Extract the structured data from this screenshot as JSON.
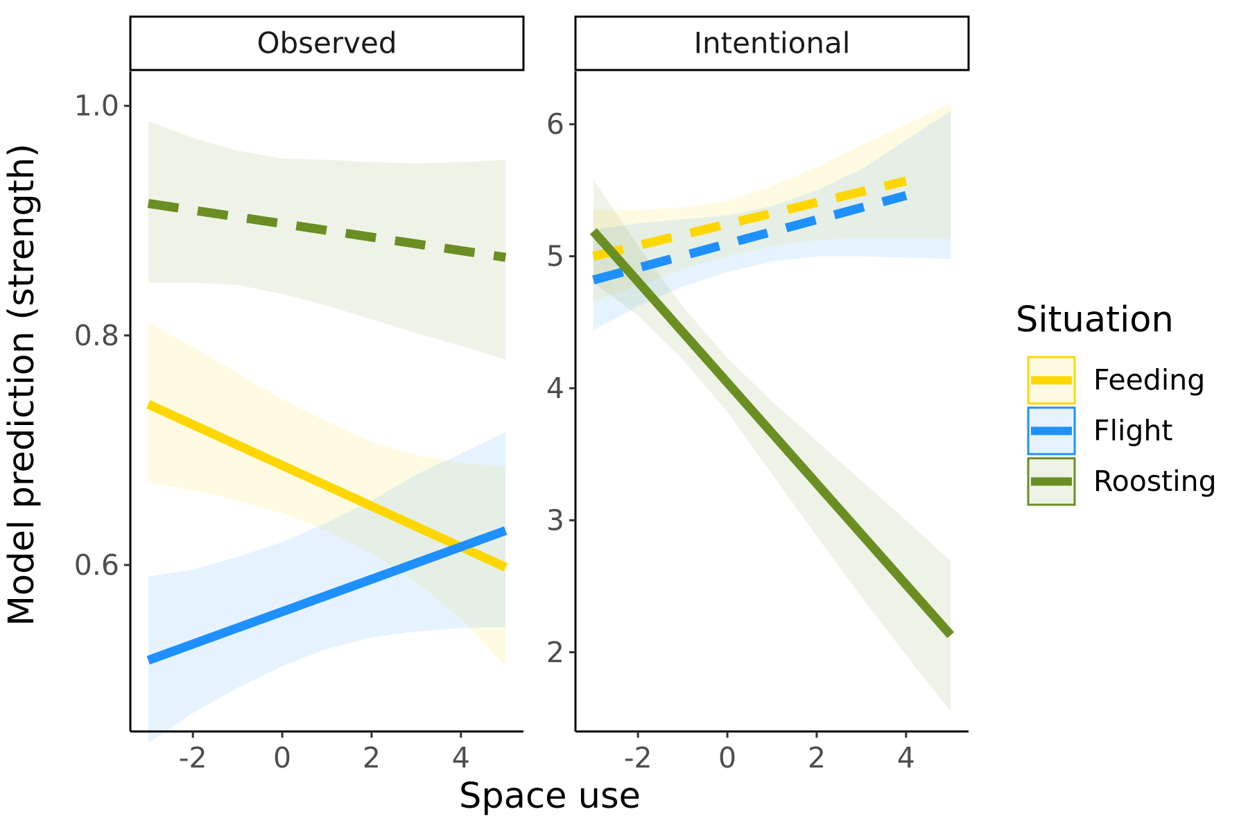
{
  "chart_data": {
    "type": "line",
    "xlabel": "Space use",
    "ylabel": "Model prediction (strength)",
    "legend": {
      "title": "Situation",
      "position": "right",
      "items": [
        {
          "label": "Feeding",
          "color": "#FFD700"
        },
        {
          "label": "Flight",
          "color": "#1E90FF"
        },
        {
          "label": "Roosting",
          "color": "#6B8E23"
        }
      ]
    },
    "grid": false,
    "panels": [
      {
        "label": "Observed",
        "xlim": [
          -3.4,
          5.4
        ],
        "ylim": [
          0.455,
          1.03
        ],
        "xticks": [
          -2,
          0,
          2,
          4
        ],
        "xtick_labels": [
          "-2",
          "0",
          "2",
          "4"
        ],
        "yticks": [
          0.6,
          0.8,
          1.0
        ],
        "ytick_labels": [
          "0.6",
          "0.8",
          "1.0"
        ],
        "series": [
          {
            "name": "Feeding",
            "color": "#FFD700",
            "dashed": false,
            "x": [
              -3,
              5
            ],
            "y": [
              0.74,
              0.598
            ],
            "ribbon": {
              "x": [
                -3,
                -2,
                -1,
                0,
                1,
                2,
                3,
                4,
                5
              ],
              "lower": [
                0.672,
                0.665,
                0.656,
                0.645,
                0.63,
                0.61,
                0.585,
                0.553,
                0.512
              ],
              "upper": [
                0.812,
                0.79,
                0.767,
                0.744,
                0.725,
                0.707,
                0.696,
                0.689,
                0.686
              ]
            }
          },
          {
            "name": "Flight",
            "color": "#1E90FF",
            "dashed": false,
            "x": [
              -3,
              5
            ],
            "y": [
              0.517,
              0.63
            ],
            "ribbon": {
              "x": [
                -3,
                -2,
                -1,
                0,
                1,
                2,
                3,
                4,
                5
              ],
              "lower": [
                0.445,
                0.471,
                0.493,
                0.512,
                0.527,
                0.537,
                0.542,
                0.545,
                0.546
              ],
              "upper": [
                0.59,
                0.596,
                0.607,
                0.62,
                0.637,
                0.656,
                0.679,
                0.697,
                0.716
              ]
            }
          },
          {
            "name": "Roosting",
            "color": "#6B8E23",
            "dashed": true,
            "x": [
              -3,
              5
            ],
            "y": [
              0.915,
              0.868
            ],
            "ribbon": {
              "x": [
                -3,
                -2,
                -1,
                0,
                1,
                2,
                3,
                4,
                5
              ],
              "lower": [
                0.846,
                0.846,
                0.844,
                0.836,
                0.826,
                0.814,
                0.802,
                0.791,
                0.779
              ],
              "upper": [
                0.987,
                0.972,
                0.961,
                0.954,
                0.953,
                0.951,
                0.95,
                0.951,
                0.953
              ]
            }
          }
        ]
      },
      {
        "label": "Intentional",
        "xlim": [
          -3.4,
          5.4
        ],
        "ylim": [
          1.4,
          6.4
        ],
        "xticks": [
          -2,
          0,
          2,
          4
        ],
        "xtick_labels": [
          "-2",
          "0",
          "2",
          "4"
        ],
        "yticks": [
          2,
          3,
          4,
          5,
          6
        ],
        "ytick_labels": [
          "2",
          "3",
          "4",
          "5",
          "6"
        ],
        "series": [
          {
            "name": "Feeding",
            "color": "#FFD700",
            "dashed": true,
            "x": [
              -3,
              4
            ],
            "y": [
              5.0,
              5.57
            ],
            "ribbon": {
              "x": [
                -3,
                -2,
                -1,
                0,
                1,
                2,
                3,
                4,
                5
              ],
              "lower": [
                4.66,
                4.78,
                4.9,
                5.0,
                5.08,
                5.12,
                5.14,
                5.14,
                5.13
              ],
              "upper": [
                5.35,
                5.35,
                5.37,
                5.42,
                5.53,
                5.68,
                5.84,
                6.0,
                6.16
              ]
            }
          },
          {
            "name": "Flight",
            "color": "#1E90FF",
            "dashed": true,
            "x": [
              -3,
              4
            ],
            "y": [
              4.82,
              5.46
            ],
            "ribbon": {
              "x": [
                -3,
                -2,
                -1,
                0,
                1,
                2,
                3,
                4,
                5
              ],
              "lower": [
                4.44,
                4.62,
                4.77,
                4.88,
                4.96,
                5.0,
                5.0,
                4.99,
                4.98
              ],
              "upper": [
                5.2,
                5.25,
                5.28,
                5.31,
                5.38,
                5.5,
                5.66,
                5.88,
                6.1
              ]
            }
          },
          {
            "name": "Roosting",
            "color": "#6B8E23",
            "dashed": false,
            "x": [
              -3,
              5
            ],
            "y": [
              5.19,
              2.13
            ],
            "ribbon": {
              "x": [
                -3,
                -2,
                -1,
                0,
                1,
                2,
                3,
                4,
                5
              ],
              "lower": [
                4.8,
                4.55,
                4.22,
                3.82,
                3.35,
                2.88,
                2.42,
                1.98,
                1.55
              ],
              "upper": [
                5.58,
                5.08,
                4.62,
                4.23,
                3.9,
                3.6,
                3.3,
                3.0,
                2.69
              ]
            }
          }
        ]
      }
    ]
  }
}
